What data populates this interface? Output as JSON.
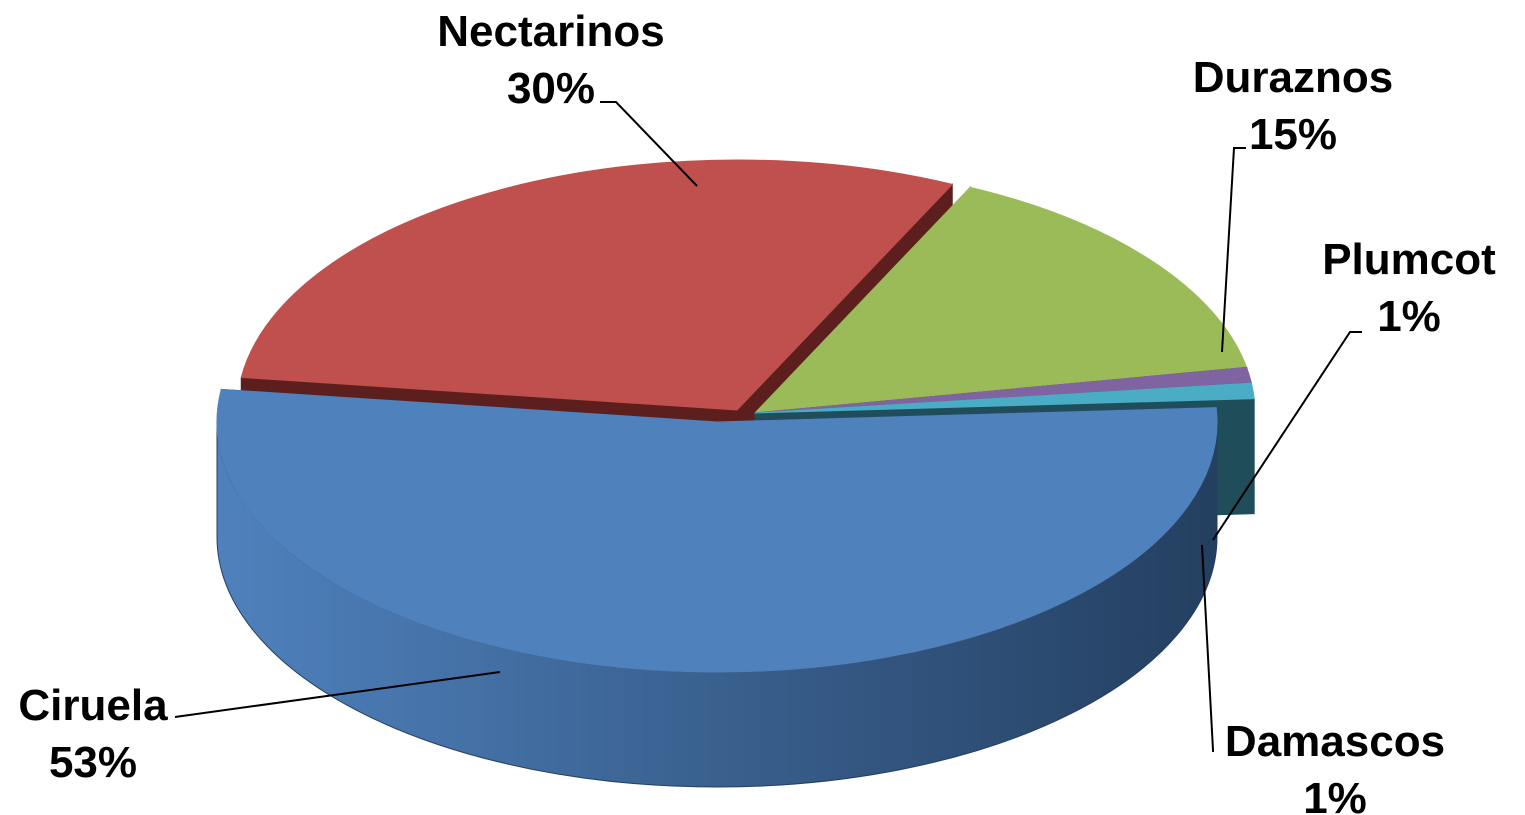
{
  "chart_data": {
    "type": "pie",
    "title": "",
    "style": "3d-exploded",
    "slices": [
      {
        "label": "Nectarinos",
        "value": 30,
        "value_label": "30%",
        "color": "#C0504D",
        "side_color": "#5C1F1E"
      },
      {
        "label": "Duraznos",
        "value": 15,
        "value_label": "15%",
        "color": "#9BBB59",
        "side_color": "#4F6128"
      },
      {
        "label": "Plumcot",
        "value": 1,
        "value_label": "1%",
        "color": "#8064A2",
        "side_color": "#3F3151"
      },
      {
        "label": "Damascos",
        "value": 1,
        "value_label": "1%",
        "color": "#4BACC6",
        "side_color": "#1F4E5A"
      },
      {
        "label": "Ciruela",
        "value": 53,
        "value_label": "53%",
        "color": "#4F81BD",
        "side_color": "#243F60"
      }
    ],
    "legend": "none"
  }
}
